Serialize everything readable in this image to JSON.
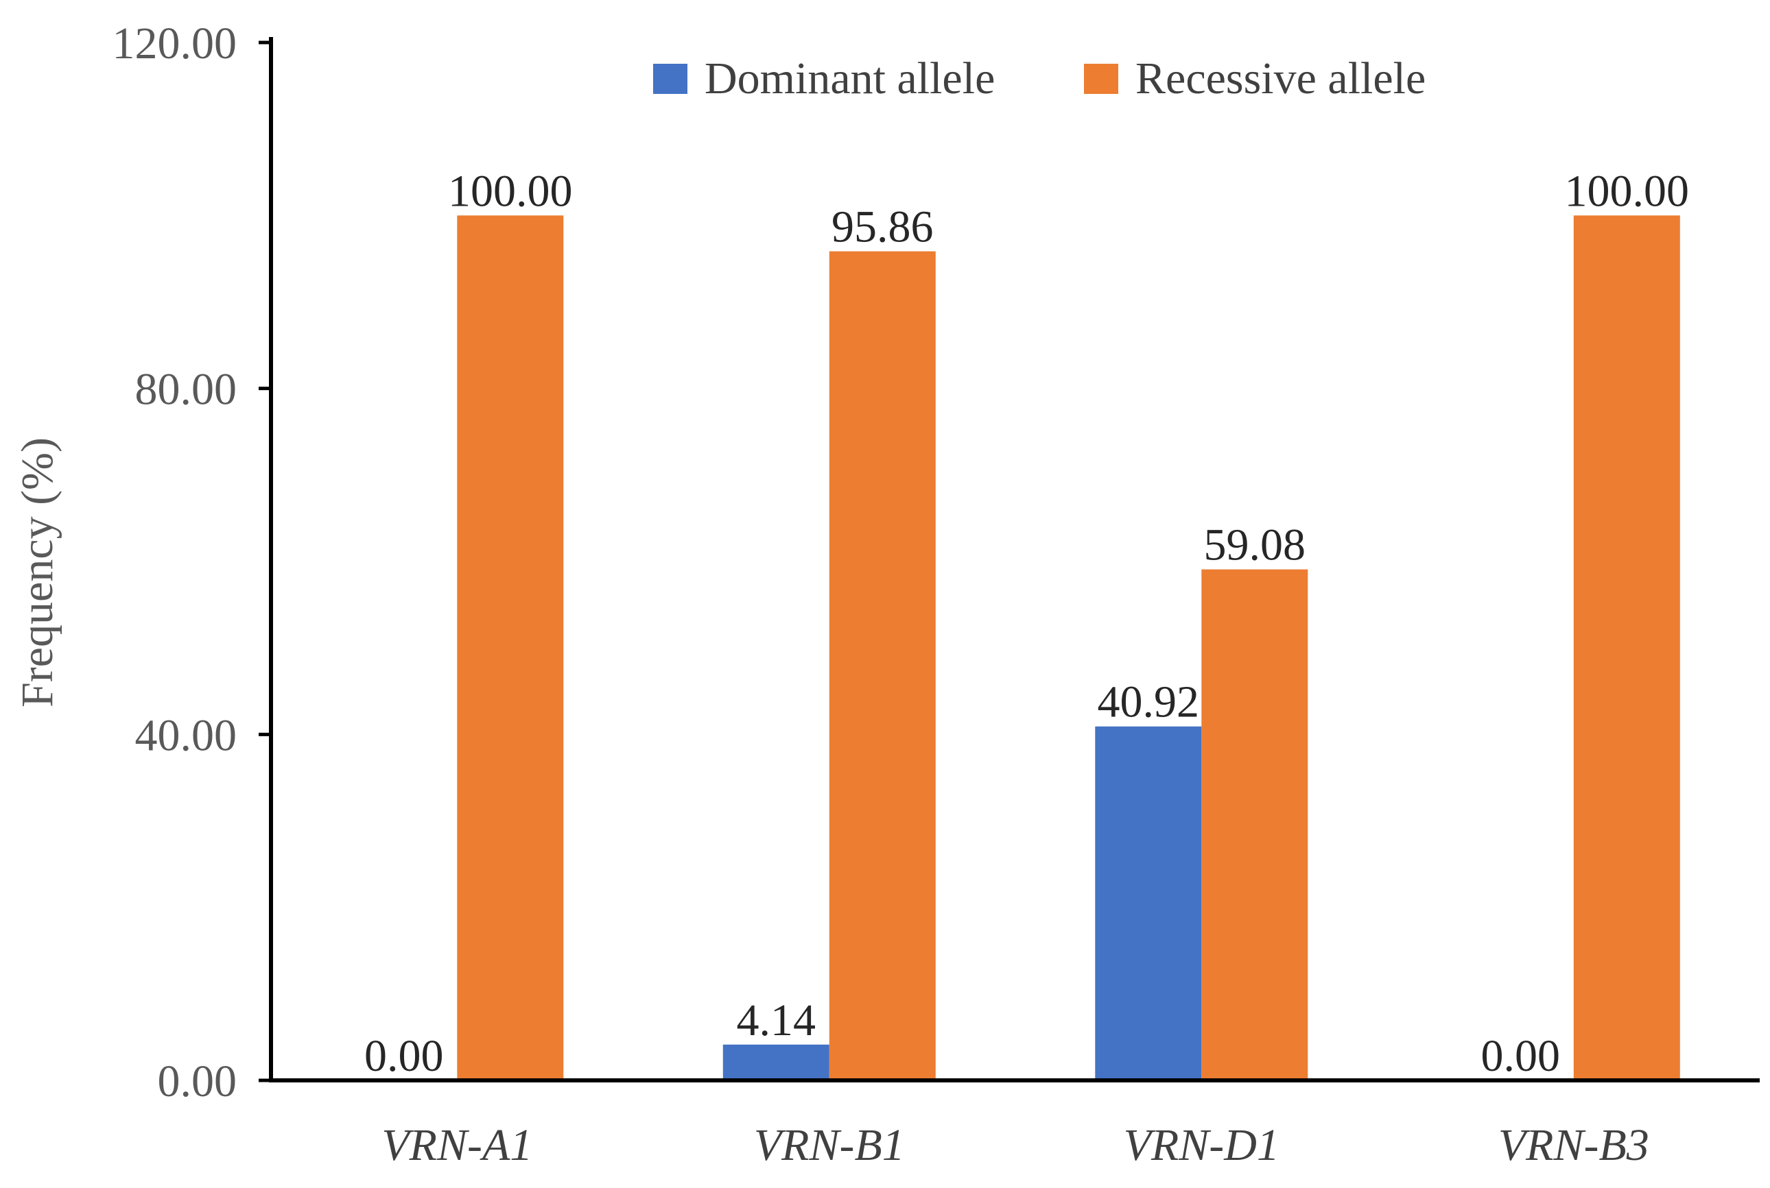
{
  "chart_data": {
    "type": "bar",
    "title": "",
    "xlabel": "",
    "ylabel": "Frequency (%)",
    "ylim": [
      0,
      120
    ],
    "yticks": [
      "0.00",
      "40.00",
      "80.00",
      "120.00"
    ],
    "ytick_values": [
      0,
      40,
      80,
      120
    ],
    "grid": false,
    "legend_position": "top",
    "categories": [
      "VRN-A1",
      "VRN-B1",
      "VRN-D1",
      "VRN-B3"
    ],
    "series": [
      {
        "name": "Dominant allele",
        "color": "#4472C4",
        "values": [
          0.0,
          4.14,
          40.92,
          0.0
        ],
        "labels": [
          "0.00",
          "4.14",
          "40.92",
          "0.00"
        ]
      },
      {
        "name": "Recessive allele",
        "color": "#ED7D31",
        "values": [
          100.0,
          95.86,
          59.08,
          100.0
        ],
        "labels": [
          "100.00",
          "95.86",
          "59.08",
          "100.00"
        ]
      }
    ]
  }
}
